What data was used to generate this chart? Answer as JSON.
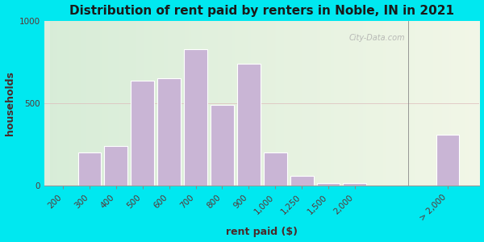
{
  "title": "Distribution of rent paid by renters in Noble, IN in 2021",
  "xlabel": "rent paid ($)",
  "ylabel": "households",
  "bar_color": "#c9b5d5",
  "bar_edge_color": "#ffffff",
  "background_outer": "#00e8f0",
  "ylim": [
    0,
    1000
  ],
  "yticks": [
    0,
    500,
    1000
  ],
  "categories": [
    "200",
    "300",
    "400",
    "500",
    "600",
    "700",
    "800",
    "900",
    "1,000",
    "1,250",
    "1,500",
    "2,000",
    "> 2,000"
  ],
  "values": [
    0,
    205,
    240,
    640,
    650,
    830,
    490,
    740,
    205,
    60,
    15,
    15,
    310
  ],
  "title_fontsize": 11,
  "axis_label_fontsize": 9,
  "tick_fontsize": 7.5,
  "watermark": "City-Data.com"
}
